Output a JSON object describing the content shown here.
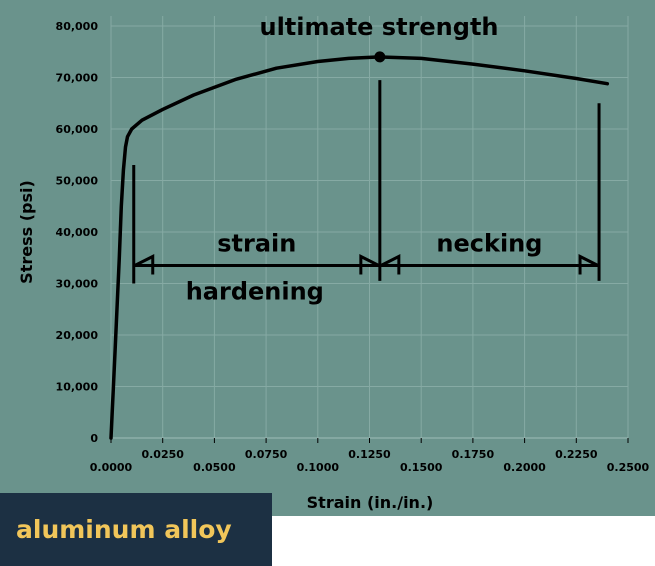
{
  "badge_label": "aluminum alloy",
  "colors": {
    "background": "#6a938c",
    "curve": "#000000",
    "grid": "#86aaa4",
    "badge_bg": "#1c3043",
    "badge_text": "#f1c65a"
  },
  "chart_data": {
    "type": "line",
    "title": "",
    "xlabel": "Strain (in./in.)",
    "ylabel": "Stress (psi)",
    "xlim": [
      0,
      0.25
    ],
    "ylim": [
      0,
      80000
    ],
    "x_ticks": [
      "0.0000",
      "0.0250",
      "0.0500",
      "0.0750",
      "0.1000",
      "0.1250",
      "0.1500",
      "0.1750",
      "0.2000",
      "0.2250",
      "0.2500"
    ],
    "y_ticks": [
      "0",
      "10,000",
      "20,000",
      "30,000",
      "40,000",
      "50,000",
      "60,000",
      "70,000",
      "80,000"
    ],
    "grid": true,
    "series": [
      {
        "x": [
          0.0,
          0.002,
          0.004,
          0.005,
          0.006,
          0.007,
          0.008,
          0.01,
          0.015,
          0.025,
          0.04,
          0.06,
          0.08,
          0.1,
          0.115,
          0.13,
          0.15,
          0.175,
          0.2,
          0.225,
          0.24
        ],
        "y": [
          0,
          17000,
          35000,
          45000,
          52000,
          56500,
          58500,
          60000,
          61700,
          63800,
          66600,
          69600,
          71800,
          73100,
          73700,
          74000,
          73700,
          72600,
          71300,
          69800,
          68800
        ]
      }
    ],
    "point": {
      "label": "ultimate strength",
      "x": 0.13,
      "y": 74000
    },
    "regions": [
      {
        "label_top": "strain",
        "label_bottom": "hardening",
        "x_start": 0.011,
        "x_end": 0.13,
        "y": 33500
      },
      {
        "label_top": "necking",
        "label_bottom": "",
        "x_start": 0.13,
        "x_end": 0.236,
        "y": 33500
      }
    ],
    "markers": [
      {
        "x": 0.011,
        "y_top": 53000,
        "y_bottom": 30000
      },
      {
        "x": 0.13,
        "y_top": 69500,
        "y_bottom": 30500
      },
      {
        "x": 0.236,
        "y_top": 65000,
        "y_bottom": 30500
      }
    ]
  }
}
